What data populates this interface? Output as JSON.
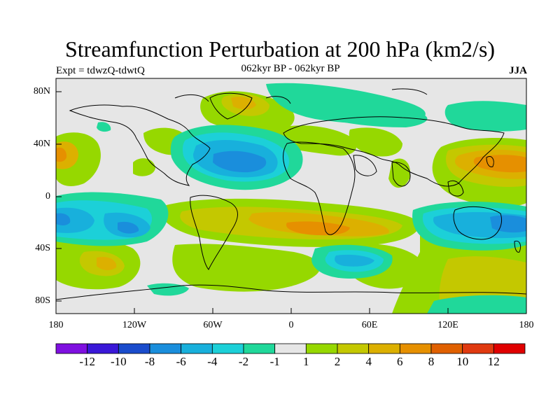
{
  "header": {
    "title": "Streamfunction Perturbation at 200 hPa (km2/s)",
    "left": "Expt = tdwzQ-tdwtQ",
    "center": "062kyr BP - 062kyr BP",
    "right": "JJA"
  },
  "axes": {
    "lat_ticks": [
      "80N",
      "40N",
      "0",
      "40S",
      "80S"
    ],
    "lon_ticks": [
      "180",
      "120W",
      "60W",
      "0",
      "60E",
      "120E",
      "180"
    ]
  },
  "colorbar": {
    "colors": [
      "#7f10e0",
      "#3a18d8",
      "#1a4ccc",
      "#1a8edc",
      "#18b0dc",
      "#1cd0d8",
      "#20d89a",
      "#e6e6e6",
      "#96d800",
      "#c4c800",
      "#dcb000",
      "#e69000",
      "#e06000",
      "#e03a10",
      "#e00000"
    ],
    "labels": [
      "-12",
      "-10",
      "-8",
      "-6",
      "-4",
      "-2",
      "-1",
      "1",
      "2",
      "4",
      "6",
      "8",
      "10",
      "12"
    ]
  }
}
